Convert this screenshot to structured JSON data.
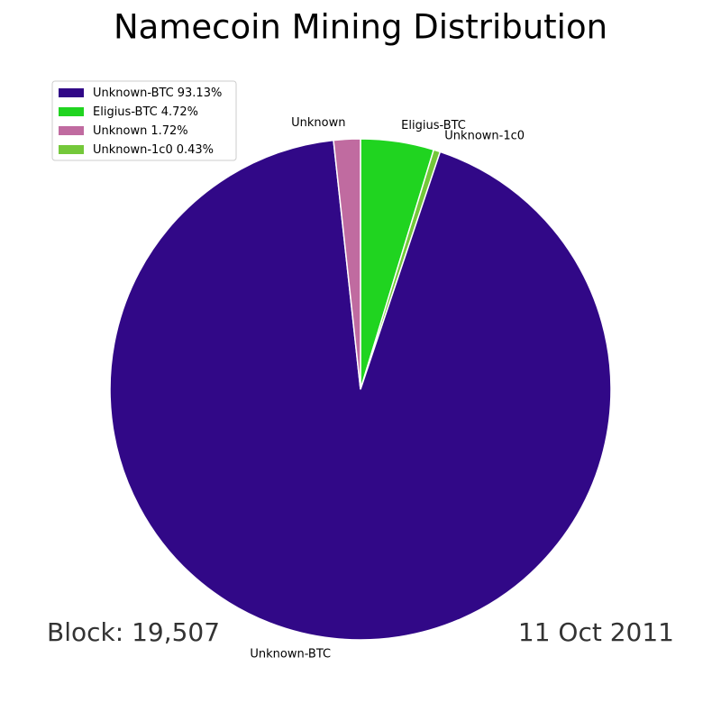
{
  "chart_data": {
    "type": "pie",
    "title": "Namecoin Mining Distribution",
    "categories": [
      "Unknown-BTC",
      "Eligius-BTC",
      "Unknown",
      "Unknown-1c0"
    ],
    "values": [
      93.13,
      4.72,
      1.72,
      0.43
    ],
    "value_labels": [
      "93.13%",
      "4.72%",
      "1.72%",
      "0.43%"
    ],
    "colors": [
      "#310887",
      "#20d420",
      "#c06ba0",
      "#74c83a"
    ],
    "legend_position": "upper left",
    "annotations": [
      "Block: 19,507",
      "11 Oct 2011"
    ]
  }
}
